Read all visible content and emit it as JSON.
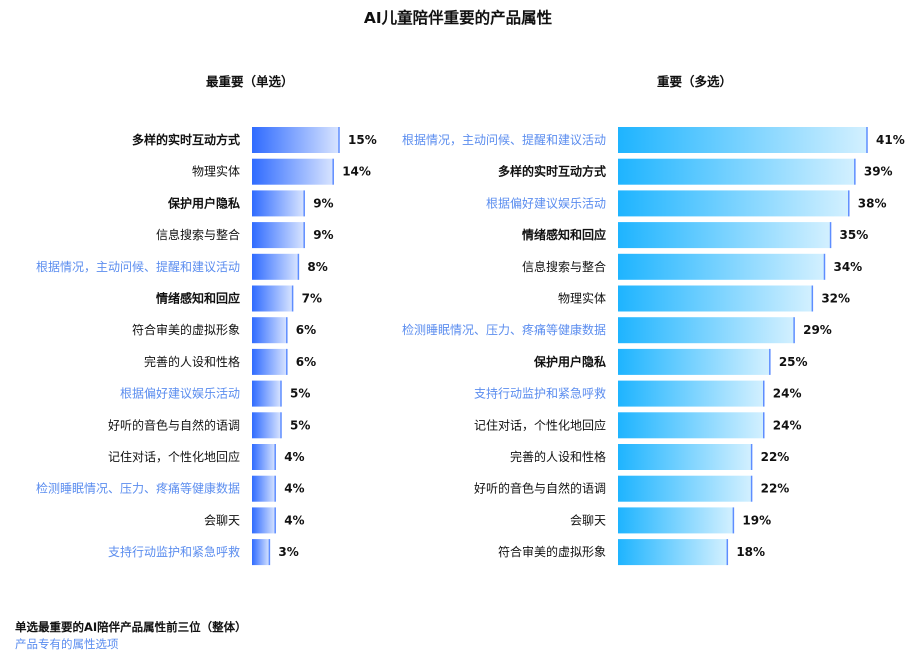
{
  "title": "AI儿童陪伴重要的产品属性",
  "colors": {
    "left_bar_start": "#2f6bff",
    "left_bar_end": "#d8e4ff",
    "right_bar_start": "#1eb4ff",
    "right_bar_end": "#d3f0ff",
    "axis_line": "#5e8dff",
    "product_label": "#5b8def",
    "normal_label": "#111111",
    "value_label": "#111111"
  },
  "footnotes": {
    "line1": "单选最重要的AI陪伴产品属性前三位（整体）",
    "line2": "产品专有的属性选项"
  },
  "chart_data": [
    {
      "type": "bar",
      "orientation": "horizontal",
      "title": "最重要（单选）",
      "unit": "%",
      "categories": [
        "多样的实时互动方式",
        "物理实体",
        "保护用户隐私",
        "信息搜索与整合",
        "根据情况，主动问候、提醒和建议活动",
        "情绪感知和回应",
        "符合审美的虚拟形象",
        "完善的人设和性格",
        "根据偏好建议娱乐活动",
        "好听的音色与自然的语调",
        "记住对话，个性化地回应",
        "检测睡眠情况、压力、疼痛等健康数据",
        "会聊天",
        "支持行动监护和紧急呼救"
      ],
      "values": [
        15,
        14,
        9,
        9,
        8,
        7,
        6,
        6,
        5,
        5,
        4,
        4,
        4,
        3
      ],
      "value_labels": [
        "15%",
        "14%",
        "9%",
        "9%",
        "8%",
        "7%",
        "6%",
        "6%",
        "5%",
        "5%",
        "4%",
        "4%",
        "4%",
        "3%"
      ],
      "label_style": [
        "bold",
        "normal",
        "bold",
        "normal",
        "product",
        "bold",
        "normal",
        "normal",
        "product",
        "normal",
        "normal",
        "product",
        "normal",
        "product"
      ]
    },
    {
      "type": "bar",
      "orientation": "horizontal",
      "title": "重要（多选）",
      "unit": "%",
      "categories": [
        "根据情况，主动问候、提醒和建议活动",
        "多样的实时互动方式",
        "根据偏好建议娱乐活动",
        "情绪感知和回应",
        "信息搜索与整合",
        "物理实体",
        "检测睡眠情况、压力、疼痛等健康数据",
        "保护用户隐私",
        "支持行动监护和紧急呼救",
        "记住对话，个性化地回应",
        "完善的人设和性格",
        "好听的音色与自然的语调",
        "会聊天",
        "符合审美的虚拟形象"
      ],
      "values": [
        41,
        39,
        38,
        35,
        34,
        32,
        29,
        25,
        24,
        24,
        22,
        22,
        19,
        18
      ],
      "value_labels": [
        "41%",
        "39%",
        "38%",
        "35%",
        "34%",
        "32%",
        "29%",
        "25%",
        "24%",
        "24%",
        "22%",
        "22%",
        "19%",
        "18%"
      ],
      "label_style": [
        "product",
        "bold",
        "product",
        "bold",
        "normal",
        "normal",
        "product",
        "bold",
        "product",
        "normal",
        "normal",
        "normal",
        "normal",
        "normal"
      ]
    }
  ]
}
